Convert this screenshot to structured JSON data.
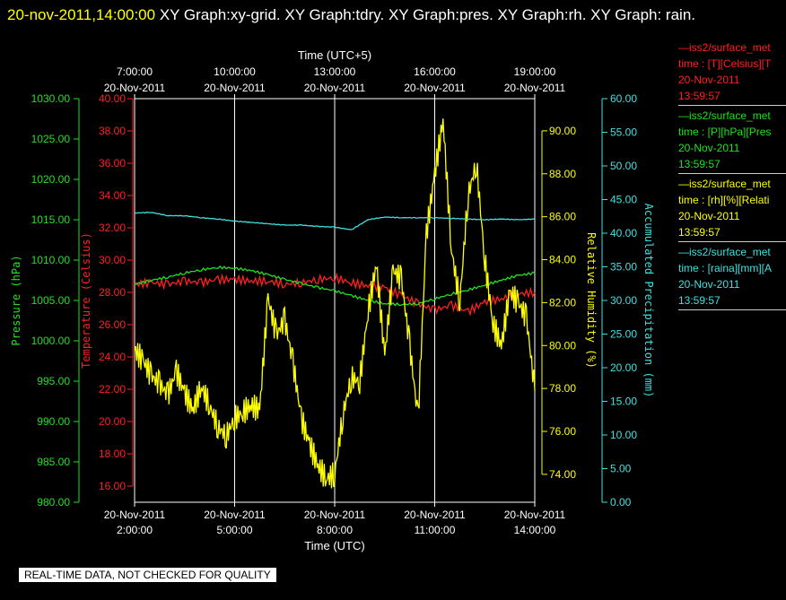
{
  "header": {
    "datetime": "20-nov-2011,14:00:00",
    "graphs_text": "  XY Graph:xy-grid.  XY Graph:tdry.  XY Graph:pres.  XY Graph:rh.  XY Graph: rain."
  },
  "legend": [
    {
      "color": "#ff2020",
      "lines": [
        "—iss2/surface_met",
        "time : [T][Celsius][T",
        "20-Nov-2011",
        "13:59:57"
      ]
    },
    {
      "color": "#20e020",
      "lines": [
        "—iss2/surface_met",
        "time : [P][hPa][Pres",
        "20-Nov-2011",
        "13:59:57"
      ]
    },
    {
      "color": "#ffff00",
      "lines": [
        "—iss2/surface_met",
        "time : [rh][%][Relati",
        "20-Nov-2011",
        "13:59:57"
      ]
    },
    {
      "color": "#40e0e0",
      "lines": [
        "—iss2/surface_met",
        "time : [raina][mm][A",
        "20-Nov-2011",
        "13:59:57"
      ]
    }
  ],
  "footer": {
    "quality_note": "REAL-TIME DATA, NOT CHECKED FOR QUALITY"
  },
  "chart_data": {
    "type": "line",
    "grid": true,
    "x_bottom": {
      "label": "Time (UTC)",
      "range_hours": [
        2,
        14
      ],
      "ticks": [
        {
          "hour": 2,
          "date": "20-Nov-2011",
          "time": "2:00:00"
        },
        {
          "hour": 5,
          "date": "20-Nov-2011",
          "time": "5:00:00"
        },
        {
          "hour": 8,
          "date": "20-Nov-2011",
          "time": "8:00:00"
        },
        {
          "hour": 11,
          "date": "20-Nov-2011",
          "time": "11:00:00"
        },
        {
          "hour": 14,
          "date": "20-Nov-2011",
          "time": "14:00:00"
        }
      ]
    },
    "x_top": {
      "label": "Time (UTC+5)",
      "ticks": [
        {
          "hour": 2,
          "date": "20-Nov-2011",
          "time": "7:00:00"
        },
        {
          "hour": 5,
          "date": "20-Nov-2011",
          "time": "10:00:00"
        },
        {
          "hour": 8,
          "date": "20-Nov-2011",
          "time": "13:00:00"
        },
        {
          "hour": 11,
          "date": "20-Nov-2011",
          "time": "16:00:00"
        },
        {
          "hour": 14,
          "date": "20-Nov-2011",
          "time": "19:00:00"
        }
      ]
    },
    "y_axes": {
      "pressure": {
        "label": "Pressure (hPa)",
        "color": "#20e020",
        "range": [
          980,
          1030
        ],
        "ticks": [
          "980.00",
          "985.00",
          "990.00",
          "995.00",
          "1000.00",
          "1005.00",
          "1010.00",
          "1015.00",
          "1020.00",
          "1025.00",
          "1030.00"
        ]
      },
      "temperature": {
        "label": "Temperature (Celsius)",
        "color": "#ff2020",
        "range": [
          15,
          40
        ],
        "ticks": [
          "16.00",
          "18.00",
          "20.00",
          "22.00",
          "24.00",
          "26.00",
          "28.00",
          "30.00",
          "32.00",
          "34.00",
          "36.00",
          "38.00",
          "40.00"
        ]
      },
      "rh": {
        "label": "Relative Humidity (%)",
        "color": "#ffff00",
        "range": [
          72.7,
          91.5
        ],
        "ticks": [
          "74.00",
          "76.00",
          "78.00",
          "80.00",
          "82.00",
          "84.00",
          "86.00",
          "88.00",
          "90.00"
        ]
      },
      "precip": {
        "label": "Accumulated Precipitation (mm)",
        "color": "#40e0e0",
        "range": [
          0,
          60
        ],
        "ticks": [
          "0.00",
          "5.00",
          "10.00",
          "15.00",
          "20.00",
          "25.00",
          "30.00",
          "35.00",
          "40.00",
          "45.00",
          "50.00",
          "55.00",
          "60.00"
        ]
      }
    },
    "series": [
      {
        "name": "Temperature",
        "axis": "temperature",
        "color": "#ff2020",
        "x": [
          2,
          2.5,
          3,
          3.5,
          4,
          4.5,
          5,
          5.5,
          6,
          6.5,
          7,
          7.5,
          8,
          8.5,
          9,
          9.5,
          10,
          10.5,
          11,
          11.5,
          12,
          12.5,
          13,
          13.5,
          14
        ],
        "values": [
          28.5,
          28.6,
          28.5,
          28.7,
          28.6,
          28.8,
          28.8,
          28.7,
          28.7,
          28.5,
          28.6,
          28.8,
          28.9,
          28.6,
          28.4,
          28.3,
          27.8,
          27.3,
          26.9,
          27.2,
          26.8,
          27.4,
          27.6,
          27.9,
          28.0
        ]
      },
      {
        "name": "Pressure",
        "axis": "pressure",
        "color": "#20e020",
        "x": [
          2,
          2.5,
          3,
          3.5,
          4,
          4.5,
          5,
          5.5,
          6,
          6.5,
          7,
          7.5,
          8,
          8.5,
          9,
          9.5,
          10,
          10.5,
          11,
          11.5,
          12,
          12.5,
          13,
          13.5,
          14
        ],
        "values": [
          1007.0,
          1007.5,
          1007.9,
          1008.4,
          1008.8,
          1009.1,
          1009.0,
          1008.7,
          1008.2,
          1007.6,
          1007.1,
          1006.6,
          1006.2,
          1005.6,
          1005.0,
          1004.6,
          1004.5,
          1004.6,
          1005.2,
          1005.8,
          1006.3,
          1006.9,
          1007.5,
          1008.1,
          1008.4
        ]
      },
      {
        "name": "Relative Humidity",
        "axis": "rh",
        "color": "#ffff00",
        "x": [
          2,
          2.25,
          2.5,
          2.75,
          3,
          3.25,
          3.5,
          3.75,
          4,
          4.25,
          4.5,
          4.75,
          5,
          5.25,
          5.5,
          5.75,
          6,
          6.25,
          6.5,
          6.75,
          7,
          7.25,
          7.5,
          7.75,
          8,
          8.25,
          8.5,
          8.75,
          9,
          9.25,
          9.5,
          9.75,
          10,
          10.25,
          10.5,
          10.75,
          11,
          11.25,
          11.5,
          11.75,
          12,
          12.25,
          12.5,
          12.75,
          13,
          13.25,
          13.5,
          13.75,
          14
        ],
        "values": [
          79.8,
          79.3,
          78.6,
          78.2,
          77.7,
          78.8,
          77.8,
          77.0,
          78.1,
          77.2,
          76.2,
          75.8,
          76.6,
          76.9,
          77.2,
          77.0,
          82.2,
          80.5,
          81.2,
          79.2,
          76.6,
          75.4,
          74.4,
          73.8,
          74.0,
          76.8,
          78.5,
          78.3,
          81.6,
          83.8,
          79.5,
          83.5,
          83.1,
          80.0,
          76.6,
          85.2,
          88.0,
          90.5,
          84.5,
          82.0,
          87.0,
          88.5,
          84.0,
          81.0,
          80.0,
          82.5,
          82.0,
          81.3,
          77.9
        ]
      },
      {
        "name": "Accumulated Precipitation",
        "axis": "precip",
        "color": "#40e0e0",
        "x": [
          2,
          2.5,
          3,
          3.5,
          4,
          4.5,
          5,
          5.5,
          6,
          6.5,
          7,
          7.5,
          8,
          8.5,
          9,
          9.5,
          10,
          10.5,
          11,
          11.5,
          12,
          12.5,
          13,
          13.5,
          14
        ],
        "values": [
          43.0,
          43.1,
          42.6,
          42.6,
          42.3,
          42.1,
          41.8,
          41.6,
          41.4,
          41.2,
          41.2,
          41.0,
          40.9,
          40.5,
          42.0,
          42.4,
          42.3,
          42.3,
          42.3,
          42.2,
          42.1,
          42.0,
          42.1,
          42.0,
          42.1
        ]
      }
    ]
  }
}
